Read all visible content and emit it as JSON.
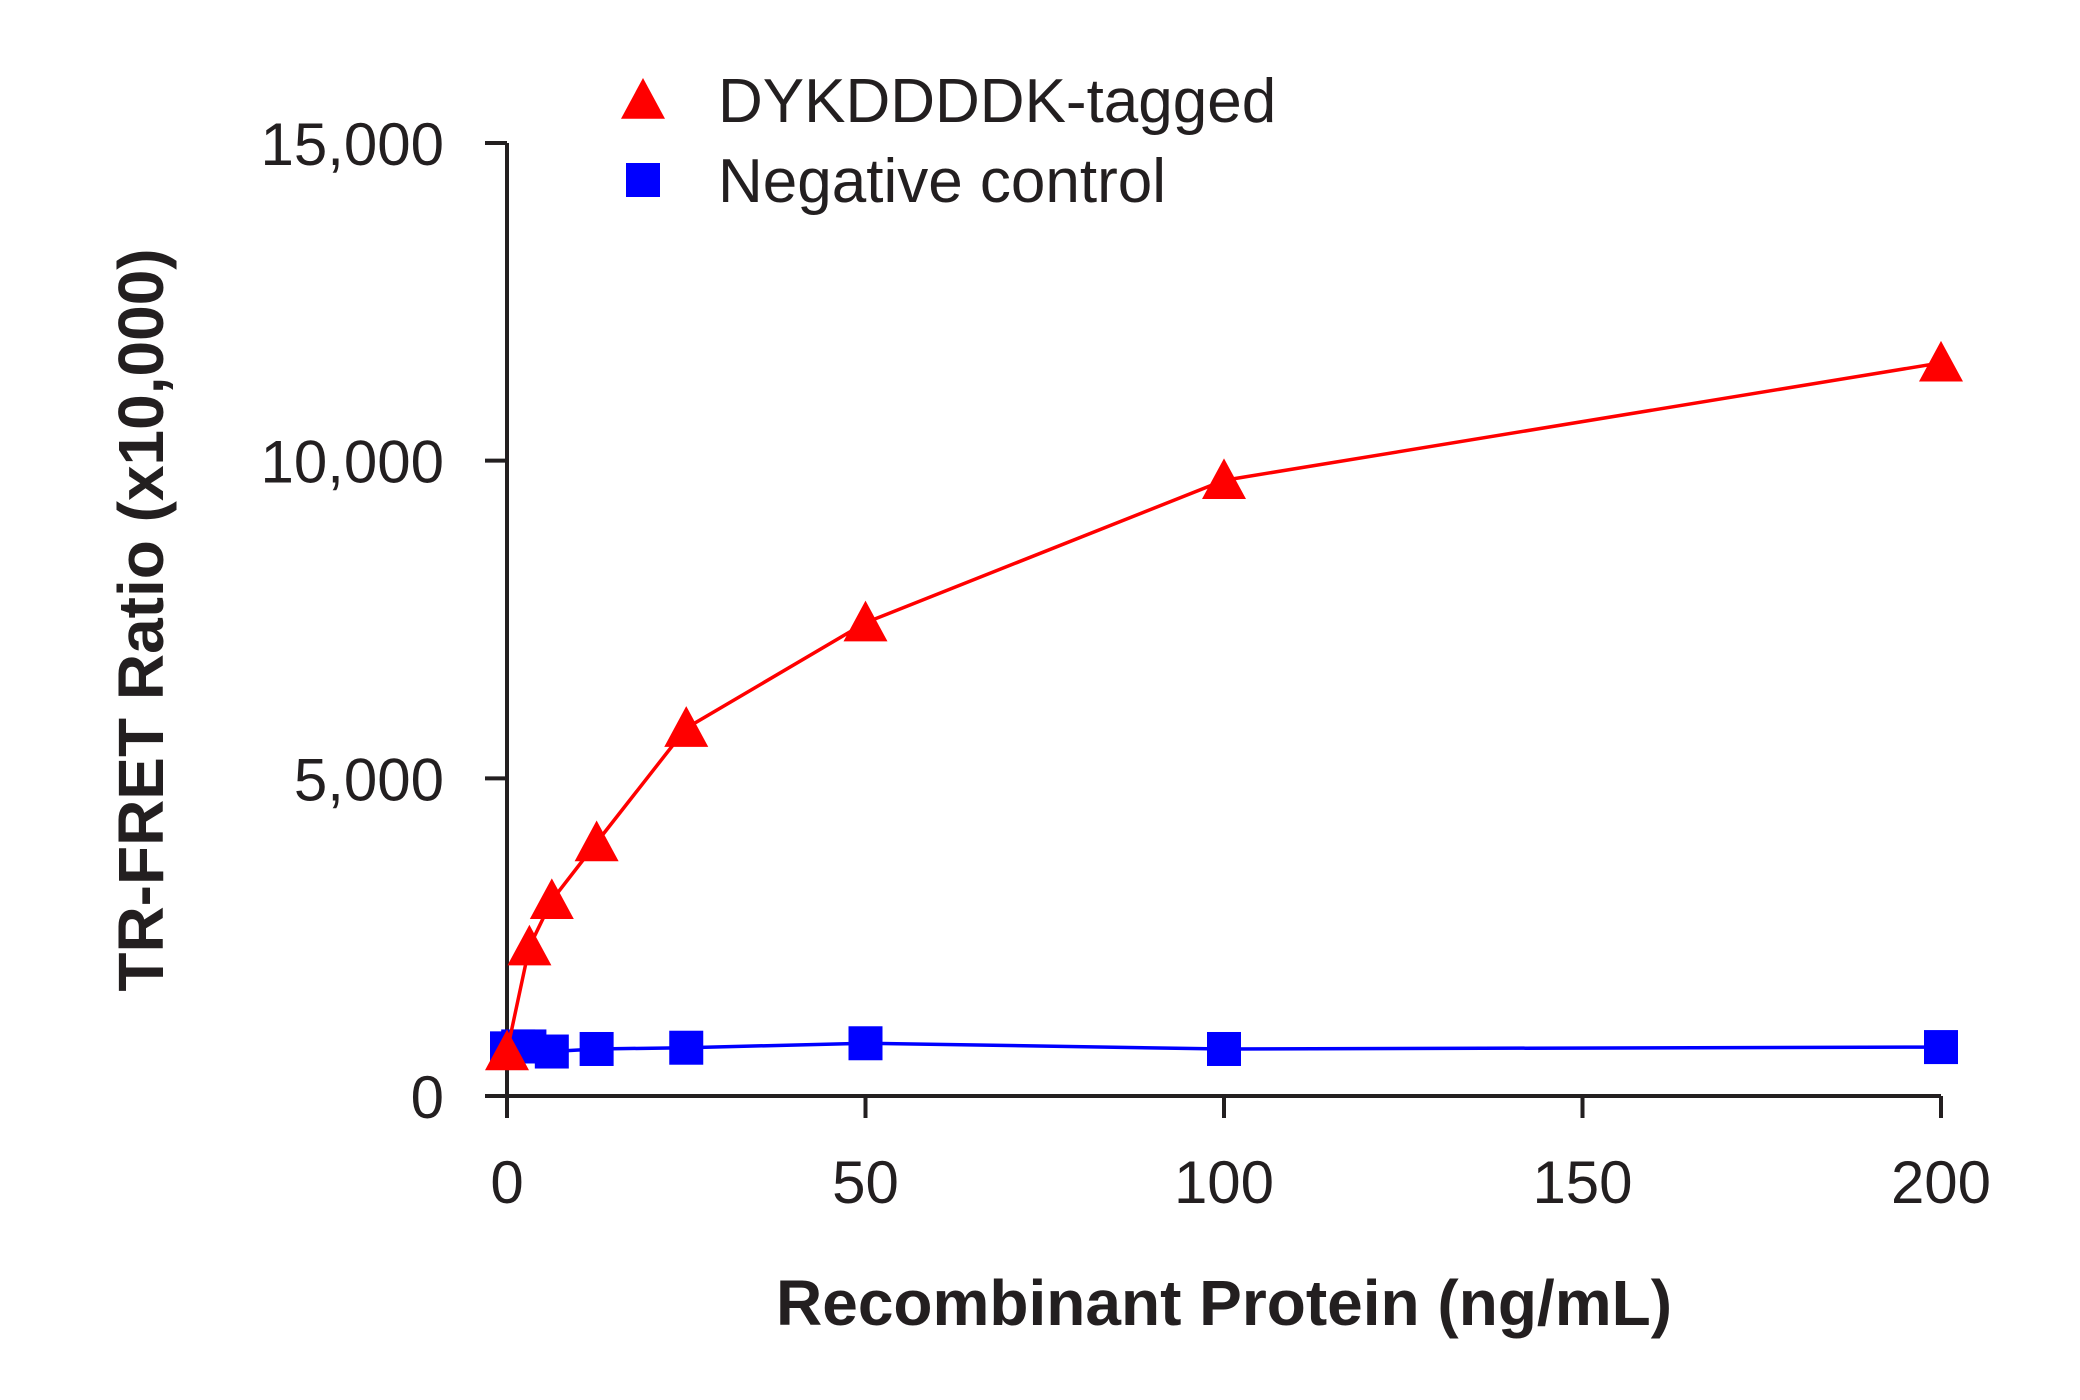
{
  "chart_data": {
    "type": "line",
    "title": "",
    "xlabel": "Recombinant Protein (ng/mL)",
    "ylabel": "TR-FRET Ratio (x10,000)",
    "xlim": [
      0,
      200
    ],
    "ylim": [
      0,
      15000
    ],
    "xticks": [
      0,
      50,
      100,
      150,
      200
    ],
    "xtick_labels": [
      "0",
      "50",
      "100",
      "150",
      "200"
    ],
    "yticks": [
      0,
      5000,
      10000,
      15000
    ],
    "ytick_labels": [
      "0",
      "5,000",
      "10,000",
      "15,000"
    ],
    "grid": false,
    "legend_position": "top-left",
    "series": [
      {
        "name": "DYKDDDDK-tagged",
        "marker": "triangle",
        "color": "#ff0000",
        "x": [
          0,
          3.125,
          6.25,
          12.5,
          25,
          50,
          100,
          200
        ],
        "y": [
          700,
          2350,
          3080,
          3990,
          5790,
          7450,
          9690,
          11540
        ]
      },
      {
        "name": "Negative control",
        "marker": "square",
        "color": "#0000ff",
        "x": [
          0,
          1.56,
          3.125,
          6.25,
          12.5,
          25,
          50,
          100,
          200
        ],
        "y": [
          750,
          780,
          780,
          700,
          740,
          760,
          830,
          740,
          770
        ]
      }
    ]
  }
}
